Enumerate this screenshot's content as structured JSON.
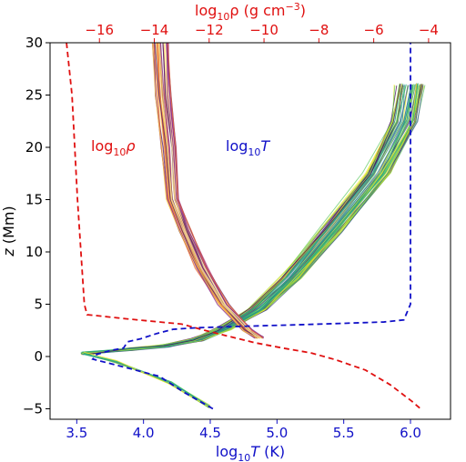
{
  "chart_data": {
    "type": "line",
    "colors": {
      "top_axis": "#e01010",
      "bottom_axis": "#1010c8",
      "left_axis": "#000000",
      "density_ref": "#e01010",
      "temperature_ref": "#1010c8"
    },
    "top_axis": {
      "title_pre": "log",
      "title_sub": "10",
      "title_mid": "ρ (g cm",
      "title_sup": "−3",
      "title_post": ")",
      "lim": [
        -17.8,
        -3.2
      ],
      "ticks": [
        -16,
        -14,
        -12,
        -10,
        -8,
        -6,
        -4
      ],
      "tick_labels": [
        "−16",
        "−14",
        "−12",
        "−10",
        "−8",
        "−6",
        "−4"
      ]
    },
    "bottom_axis": {
      "title_pre": "log",
      "title_sub": "10",
      "title_mid": "T",
      "title_post": " (K)",
      "lim": [
        3.3,
        6.3
      ],
      "ticks": [
        3.5,
        4.0,
        4.5,
        5.0,
        5.5,
        6.0
      ],
      "tick_labels": [
        "3.5",
        "4.0",
        "4.5",
        "5.0",
        "5.5",
        "6.0"
      ]
    },
    "left_axis": {
      "title_pre": "z",
      "title_post": " (Mm)",
      "lim": [
        -6,
        30
      ],
      "ticks": [
        -5,
        0,
        5,
        10,
        15,
        20,
        25,
        30
      ],
      "tick_labels": [
        "−5",
        "0",
        "5",
        "10",
        "15",
        "20",
        "25",
        "30"
      ]
    },
    "annotations": {
      "rho_label": {
        "pre": "log",
        "sub": "10",
        "post": "ρ"
      },
      "temp_label": {
        "pre": "log",
        "sub": "10",
        "post": "T"
      }
    },
    "series": [
      {
        "role": "density_reference",
        "axis": "top",
        "style": "dashed",
        "points": [
          [
            -17.2,
            30
          ],
          [
            -17.0,
            25
          ],
          [
            -16.8,
            15
          ],
          [
            -16.55,
            5
          ],
          [
            -16.45,
            4.0
          ],
          [
            -15,
            3.6
          ],
          [
            -13,
            3.1
          ],
          [
            -12.3,
            2.6
          ],
          [
            -11.4,
            2.0
          ],
          [
            -10.3,
            1.3
          ],
          [
            -9.3,
            0.8
          ],
          [
            -8.3,
            0.35
          ],
          [
            -7.4,
            -0.3
          ],
          [
            -6.3,
            -1.3
          ],
          [
            -5.4,
            -2.7
          ],
          [
            -4.6,
            -4.3
          ],
          [
            -4.25,
            -5.1
          ]
        ]
      },
      {
        "role": "temperature_reference",
        "axis": "bottom",
        "style": "dashed",
        "points": [
          [
            4.52,
            -5.0
          ],
          [
            4.3,
            -3.4
          ],
          [
            4.12,
            -1.9
          ],
          [
            3.82,
            -0.9
          ],
          [
            3.62,
            -0.25
          ],
          [
            3.65,
            0.2
          ],
          [
            3.76,
            0.6
          ],
          [
            3.85,
            0.8
          ],
          [
            3.88,
            1.4
          ],
          [
            3.98,
            1.7
          ],
          [
            4.1,
            2.2
          ],
          [
            4.22,
            2.6
          ],
          [
            4.4,
            2.75
          ],
          [
            4.78,
            2.9
          ],
          [
            5.2,
            3.05
          ],
          [
            5.8,
            3.3
          ],
          [
            5.95,
            3.5
          ],
          [
            6.0,
            5.0
          ],
          [
            6.0,
            26.0
          ],
          [
            6.0,
            30.0
          ]
        ]
      },
      {
        "role": "density_ensemble",
        "axis": "top",
        "style": "solid",
        "points": [
          [
            -13.8,
            30
          ],
          [
            -13.7,
            25
          ],
          [
            -13.5,
            20
          ],
          [
            -13.35,
            15
          ],
          [
            -12.9,
            12
          ],
          [
            -12.3,
            8.5
          ],
          [
            -11.5,
            5
          ],
          [
            -10.6,
            2.5
          ],
          [
            -10.2,
            1.8
          ]
        ]
      },
      {
        "role": "temperature_ensemble",
        "axis": "bottom",
        "style": "solid",
        "points": [
          [
            3.55,
            0.3
          ],
          [
            3.9,
            0.7
          ],
          [
            4.15,
            1.0
          ],
          [
            4.4,
            1.6
          ],
          [
            4.6,
            2.6
          ],
          [
            4.85,
            4.5
          ],
          [
            5.1,
            7.5
          ],
          [
            5.4,
            12.0
          ],
          [
            5.75,
            17.5
          ],
          [
            5.95,
            22.5
          ],
          [
            6.0,
            26.0
          ]
        ]
      }
    ]
  }
}
